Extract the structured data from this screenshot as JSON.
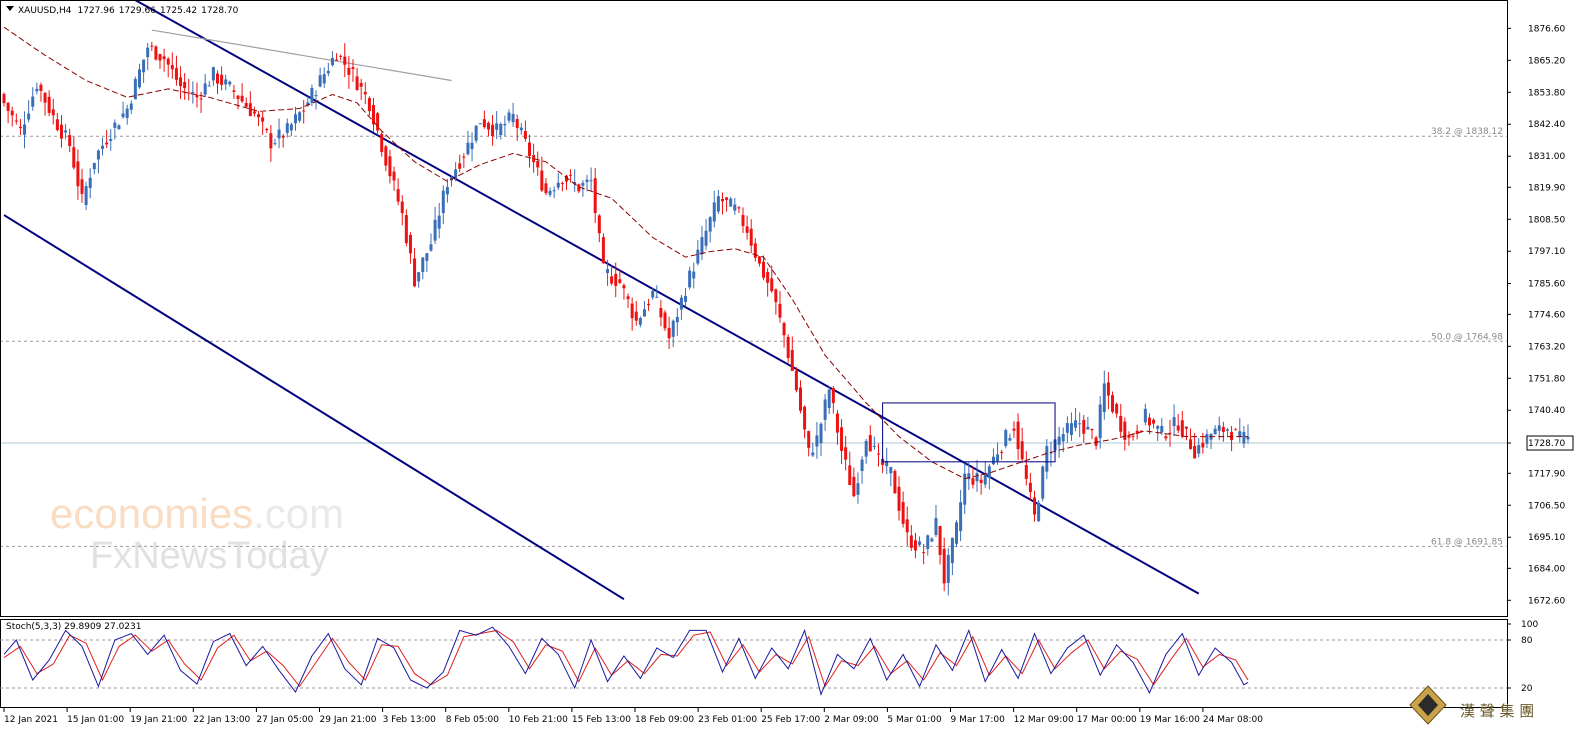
{
  "chart_data": {
    "type": "candlestick",
    "symbol_header": "XAUUSD,H4",
    "ohlc_header": [
      "1727.96",
      "1729.66",
      "1725.42",
      "1728.70"
    ],
    "current_price": "1728.70",
    "ylim": [
      1667,
      1886
    ],
    "y_ticks": [
      "1876.60",
      "1865.20",
      "1853.80",
      "1842.40",
      "1831.00",
      "1819.90",
      "1808.50",
      "1797.10",
      "1785.60",
      "1774.60",
      "1763.20",
      "1751.80",
      "1740.40",
      "1728.70",
      "1717.90",
      "1706.50",
      "1695.10",
      "1684.00",
      "1672.60"
    ],
    "x_ticks": [
      "12 Jan 2021",
      "15 Jan 01:00",
      "19 Jan 21:00",
      "22 Jan 13:00",
      "27 Jan 05:00",
      "29 Jan 21:00",
      "3 Feb 13:00",
      "8 Feb 05:00",
      "10 Feb 21:00",
      "15 Feb 13:00",
      "18 Feb 09:00",
      "23 Feb 01:00",
      "25 Feb 17:00",
      "2 Mar 09:00",
      "5 Mar 01:00",
      "9 Mar 17:00",
      "12 Mar 09:00",
      "17 Mar 00:00",
      "19 Mar 16:00",
      "24 Mar 08:00"
    ],
    "fib_levels": [
      {
        "label": "38.2 @ 1838.12",
        "value": 1838.12
      },
      {
        "label": "50.0 @ 1764.98",
        "value": 1764.98
      },
      {
        "label": "61.8 @ 1691.85",
        "value": 1691.85
      }
    ],
    "close_anchors": [
      [
        0,
        1850
      ],
      [
        4,
        1840
      ],
      [
        8,
        1857
      ],
      [
        12,
        1845
      ],
      [
        16,
        1835
      ],
      [
        19,
        1815
      ],
      [
        22,
        1830
      ],
      [
        26,
        1840
      ],
      [
        30,
        1848
      ],
      [
        35,
        1870
      ],
      [
        39,
        1866
      ],
      [
        43,
        1856
      ],
      [
        47,
        1852
      ],
      [
        51,
        1860
      ],
      [
        56,
        1854
      ],
      [
        61,
        1846
      ],
      [
        65,
        1836
      ],
      [
        69,
        1840
      ],
      [
        73,
        1848
      ],
      [
        77,
        1858
      ],
      [
        81,
        1868
      ],
      [
        85,
        1860
      ],
      [
        89,
        1850
      ],
      [
        93,
        1830
      ],
      [
        97,
        1810
      ],
      [
        100,
        1787
      ],
      [
        104,
        1800
      ],
      [
        108,
        1822
      ],
      [
        112,
        1832
      ],
      [
        116,
        1844
      ],
      [
        120,
        1840
      ],
      [
        124,
        1845
      ],
      [
        128,
        1832
      ],
      [
        132,
        1818
      ],
      [
        136,
        1824
      ],
      [
        140,
        1820
      ],
      [
        143,
        1822
      ],
      [
        146,
        1790
      ],
      [
        150,
        1786
      ],
      [
        154,
        1772
      ],
      [
        158,
        1782
      ],
      [
        162,
        1766
      ],
      [
        166,
        1784
      ],
      [
        170,
        1800
      ],
      [
        174,
        1816
      ],
      [
        178,
        1812
      ],
      [
        181,
        1805
      ],
      [
        184,
        1792
      ],
      [
        187,
        1783
      ],
      [
        190,
        1767
      ],
      [
        193,
        1748
      ],
      [
        196,
        1725
      ],
      [
        198,
        1730
      ],
      [
        201,
        1748
      ],
      [
        204,
        1726
      ],
      [
        207,
        1710
      ],
      [
        210,
        1732
      ],
      [
        213,
        1722
      ],
      [
        216,
        1718
      ],
      [
        220,
        1695
      ],
      [
        224,
        1690
      ],
      [
        227,
        1700
      ],
      [
        229,
        1680
      ],
      [
        232,
        1698
      ],
      [
        234,
        1717
      ],
      [
        238,
        1715
      ],
      [
        242,
        1726
      ],
      [
        246,
        1735
      ],
      [
        249,
        1715
      ],
      [
        251,
        1702
      ],
      [
        254,
        1726
      ],
      [
        258,
        1732
      ],
      [
        262,
        1736
      ],
      [
        266,
        1730
      ],
      [
        268,
        1749
      ],
      [
        271,
        1738
      ],
      [
        274,
        1730
      ],
      [
        278,
        1738
      ],
      [
        282,
        1732
      ],
      [
        286,
        1736
      ],
      [
        290,
        1726
      ],
      [
        294,
        1732
      ],
      [
        298,
        1734
      ],
      [
        301,
        1730
      ],
      [
        303,
        1730
      ]
    ],
    "ma_anchors": [
      [
        0,
        1877
      ],
      [
        10,
        1867
      ],
      [
        20,
        1858
      ],
      [
        30,
        1852
      ],
      [
        40,
        1855
      ],
      [
        50,
        1852
      ],
      [
        62,
        1847
      ],
      [
        72,
        1848
      ],
      [
        80,
        1853
      ],
      [
        86,
        1850
      ],
      [
        92,
        1840
      ],
      [
        100,
        1829
      ],
      [
        108,
        1822
      ],
      [
        116,
        1828
      ],
      [
        124,
        1832
      ],
      [
        132,
        1829
      ],
      [
        140,
        1820
      ],
      [
        148,
        1816
      ],
      [
        158,
        1802
      ],
      [
        166,
        1795
      ],
      [
        172,
        1797
      ],
      [
        178,
        1798
      ],
      [
        185,
        1795
      ],
      [
        192,
        1780
      ],
      [
        200,
        1760
      ],
      [
        210,
        1743
      ],
      [
        218,
        1731
      ],
      [
        226,
        1722
      ],
      [
        234,
        1716
      ],
      [
        240,
        1718
      ],
      [
        246,
        1721
      ],
      [
        254,
        1725
      ],
      [
        262,
        1728
      ],
      [
        270,
        1730
      ],
      [
        278,
        1733
      ],
      [
        288,
        1731
      ],
      [
        298,
        1731
      ],
      [
        303,
        1731
      ]
    ],
    "channel_lines": [
      {
        "name": "upper",
        "from": [
          1,
          1912
        ],
        "to": [
          291,
          1675
        ]
      },
      {
        "name": "lower",
        "from": [
          0,
          1810
        ],
        "to": [
          151,
          1673
        ]
      }
    ],
    "resistance_line": {
      "from": [
        36,
        1876
      ],
      "to": [
        109,
        1858
      ]
    },
    "range_box": {
      "x": [
        214,
        256
      ],
      "y": [
        1722,
        1743
      ]
    },
    "stochastic": {
      "header": "Stoch(5,3,3) 29.8909 27.0231",
      "levels": [
        "100",
        "80",
        "20"
      ],
      "k_anchors": [
        [
          0,
          62
        ],
        [
          3,
          80
        ],
        [
          7,
          30
        ],
        [
          11,
          55
        ],
        [
          15,
          92
        ],
        [
          19,
          72
        ],
        [
          23,
          22
        ],
        [
          27,
          80
        ],
        [
          31,
          88
        ],
        [
          35,
          62
        ],
        [
          39,
          86
        ],
        [
          43,
          42
        ],
        [
          47,
          25
        ],
        [
          51,
          78
        ],
        [
          55,
          88
        ],
        [
          59,
          48
        ],
        [
          63,
          72
        ],
        [
          67,
          42
        ],
        [
          71,
          15
        ],
        [
          75,
          60
        ],
        [
          79,
          88
        ],
        [
          83,
          44
        ],
        [
          87,
          24
        ],
        [
          91,
          82
        ],
        [
          95,
          70
        ],
        [
          99,
          30
        ],
        [
          103,
          20
        ],
        [
          107,
          40
        ],
        [
          111,
          92
        ],
        [
          115,
          86
        ],
        [
          119,
          96
        ],
        [
          123,
          72
        ],
        [
          127,
          38
        ],
        [
          131,
          82
        ],
        [
          135,
          62
        ],
        [
          139,
          20
        ],
        [
          143,
          80
        ],
        [
          147,
          28
        ],
        [
          151,
          60
        ],
        [
          155,
          32
        ],
        [
          159,
          70
        ],
        [
          163,
          58
        ],
        [
          167,
          92
        ],
        [
          171,
          92
        ],
        [
          175,
          40
        ],
        [
          179,
          82
        ],
        [
          183,
          32
        ],
        [
          187,
          70
        ],
        [
          191,
          44
        ],
        [
          195,
          92
        ],
        [
          199,
          12
        ],
        [
          203,
          62
        ],
        [
          207,
          44
        ],
        [
          211,
          82
        ],
        [
          215,
          30
        ],
        [
          219,
          62
        ],
        [
          223,
          22
        ],
        [
          227,
          74
        ],
        [
          231,
          42
        ],
        [
          235,
          92
        ],
        [
          239,
          28
        ],
        [
          243,
          68
        ],
        [
          247,
          32
        ],
        [
          251,
          88
        ],
        [
          255,
          38
        ],
        [
          259,
          70
        ],
        [
          263,
          86
        ],
        [
          267,
          36
        ],
        [
          271,
          74
        ],
        [
          275,
          52
        ],
        [
          279,
          14
        ],
        [
          283,
          62
        ],
        [
          287,
          88
        ],
        [
          291,
          36
        ],
        [
          295,
          70
        ],
        [
          299,
          52
        ],
        [
          302,
          24
        ],
        [
          303,
          27
        ]
      ],
      "d_anchors": [
        [
          0,
          58
        ],
        [
          4,
          72
        ],
        [
          8,
          38
        ],
        [
          12,
          50
        ],
        [
          16,
          86
        ],
        [
          20,
          76
        ],
        [
          24,
          30
        ],
        [
          28,
          72
        ],
        [
          32,
          86
        ],
        [
          36,
          66
        ],
        [
          40,
          80
        ],
        [
          44,
          50
        ],
        [
          48,
          30
        ],
        [
          52,
          70
        ],
        [
          56,
          86
        ],
        [
          60,
          54
        ],
        [
          64,
          66
        ],
        [
          68,
          48
        ],
        [
          72,
          22
        ],
        [
          76,
          52
        ],
        [
          80,
          82
        ],
        [
          84,
          52
        ],
        [
          88,
          30
        ],
        [
          92,
          74
        ],
        [
          96,
          72
        ],
        [
          100,
          38
        ],
        [
          104,
          24
        ],
        [
          108,
          36
        ],
        [
          112,
          84
        ],
        [
          116,
          88
        ],
        [
          120,
          92
        ],
        [
          124,
          78
        ],
        [
          128,
          44
        ],
        [
          132,
          74
        ],
        [
          136,
          66
        ],
        [
          140,
          28
        ],
        [
          144,
          70
        ],
        [
          148,
          36
        ],
        [
          152,
          54
        ],
        [
          156,
          38
        ],
        [
          160,
          62
        ],
        [
          164,
          60
        ],
        [
          168,
          86
        ],
        [
          172,
          90
        ],
        [
          176,
          48
        ],
        [
          180,
          74
        ],
        [
          184,
          40
        ],
        [
          188,
          62
        ],
        [
          192,
          50
        ],
        [
          196,
          84
        ],
        [
          200,
          22
        ],
        [
          204,
          54
        ],
        [
          208,
          48
        ],
        [
          212,
          72
        ],
        [
          216,
          38
        ],
        [
          220,
          54
        ],
        [
          224,
          30
        ],
        [
          228,
          64
        ],
        [
          232,
          48
        ],
        [
          236,
          84
        ],
        [
          240,
          36
        ],
        [
          244,
          60
        ],
        [
          248,
          38
        ],
        [
          252,
          80
        ],
        [
          256,
          44
        ],
        [
          260,
          64
        ],
        [
          264,
          80
        ],
        [
          268,
          44
        ],
        [
          272,
          66
        ],
        [
          276,
          56
        ],
        [
          280,
          24
        ],
        [
          284,
          54
        ],
        [
          288,
          82
        ],
        [
          292,
          46
        ],
        [
          296,
          62
        ],
        [
          300,
          55
        ],
        [
          303,
          30
        ]
      ]
    }
  },
  "watermark": {
    "line1a": "economies",
    "line1b": ".com",
    "line2": "FxNewsToday"
  },
  "corner_logo_text": "漢 聲 集 團",
  "colors": {
    "bull": "#3a6fb8",
    "bear": "#ee1111",
    "ma": "#8b0000",
    "channel": "#000080",
    "resistance": "#a0a0a0",
    "stoch_k": "#1a1aa0",
    "stoch_d": "#e02020"
  }
}
